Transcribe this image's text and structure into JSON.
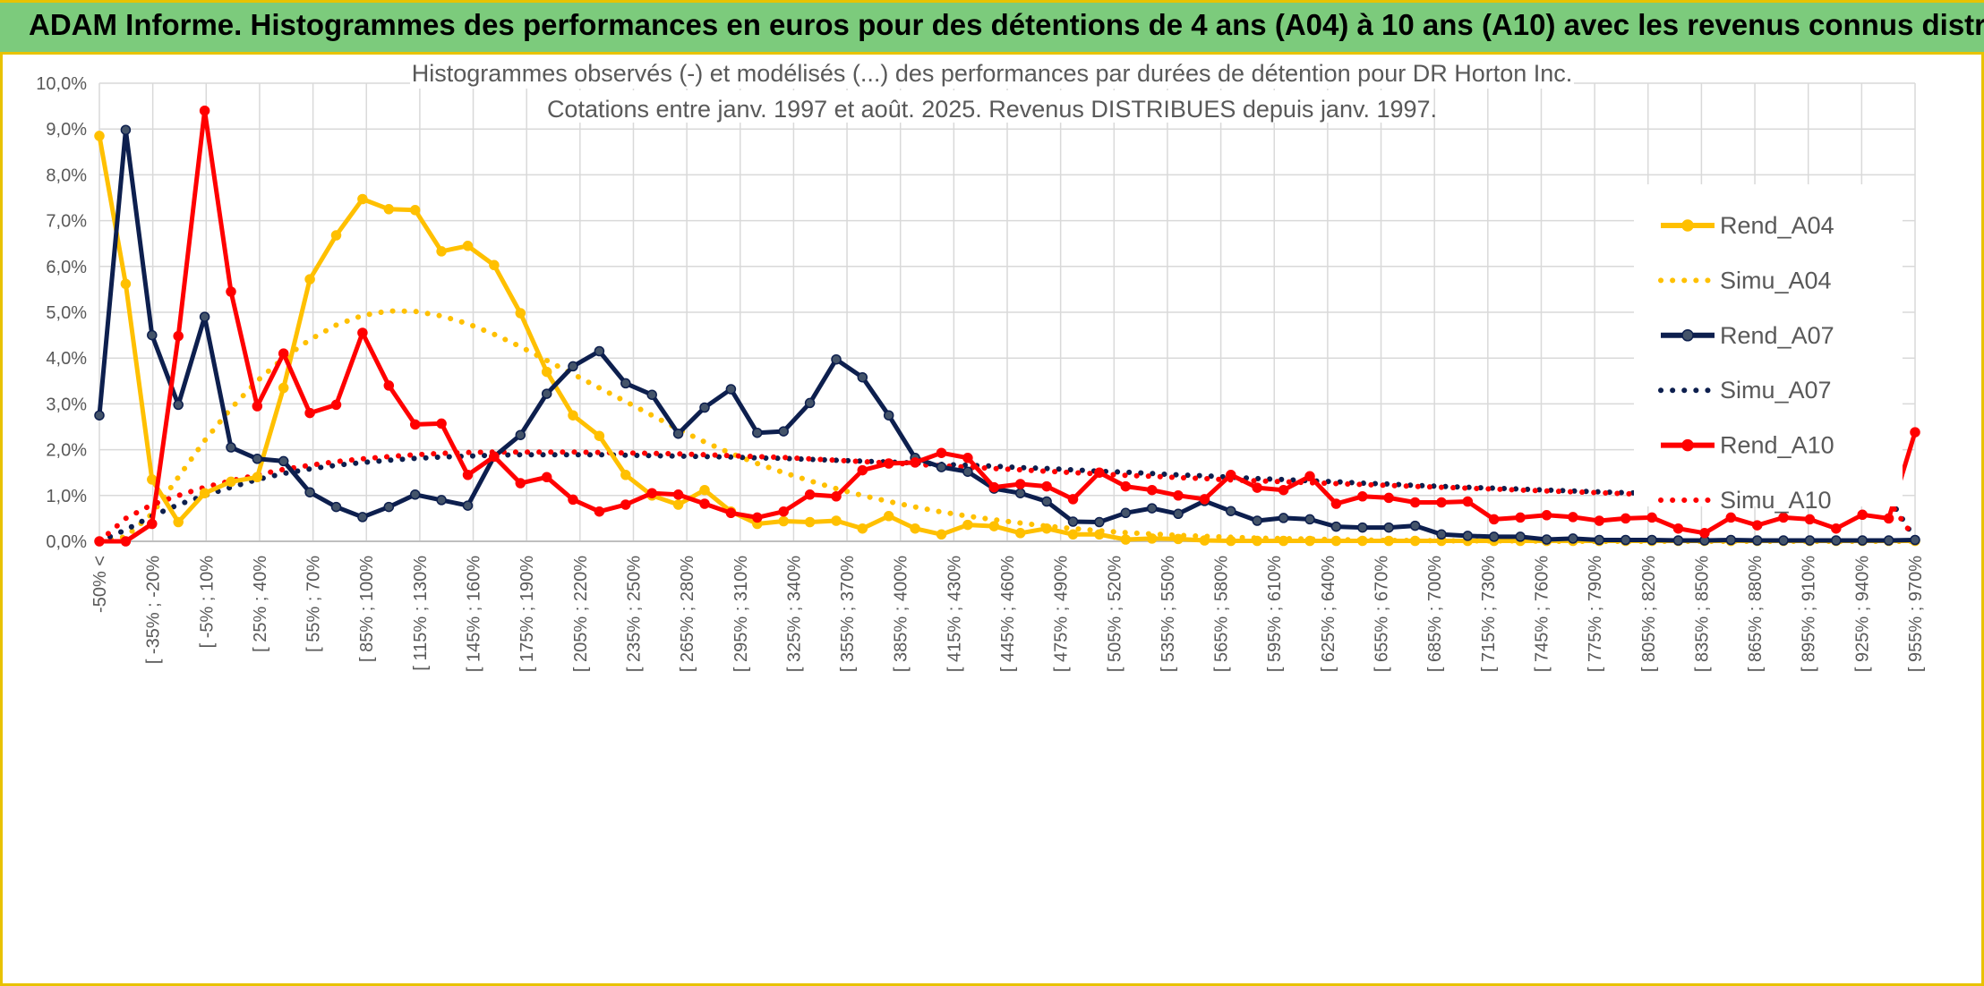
{
  "header": {
    "title": "ADAM Informe. Histogrammes des performances en euros pour des détentions de 4 ans (A04) à 10 ans (A10) avec les revenus connus distribués"
  },
  "chart_data": {
    "type": "line",
    "title": "Histogrammes observés (-) et modélisés (...) des performances par durées de détention pour DR Horton Inc.",
    "subtitle": "Cotations entre janv. 1997 et août. 2025. Revenus DISTRIBUES depuis janv. 1997.",
    "xlabel": "",
    "ylabel": "",
    "ylim": [
      0,
      10
    ],
    "y_ticks": [
      "0,0%",
      "1,0%",
      "2,0%",
      "3,0%",
      "4,0%",
      "5,0%",
      "6,0%",
      "7,0%",
      "8,0%",
      "9,0%",
      "10,0%"
    ],
    "grid": true,
    "legend_position": "right",
    "x_tick_labels": [
      "-50% <",
      "[ -35% ; -20%",
      "[ -5% ; 10%",
      "[ 25% ; 40%",
      "[ 55% ; 70%",
      "[ 85% ; 100%",
      "[ 115% ; 130%",
      "[ 145% ; 160%",
      "[ 175% ; 190%",
      "[ 205% ; 220%",
      "[ 235% ; 250%",
      "[ 265% ; 280%",
      "[ 295% ; 310%",
      "[ 325% ; 340%",
      "[ 355% ; 370%",
      "[ 385% ; 400%",
      "[ 415% ; 430%",
      "[ 445% ; 460%",
      "[ 475% ; 490%",
      "[ 505% ; 520%",
      "[ 535% ; 550%",
      "[ 565% ; 580%",
      "[ 595% ; 610%",
      "[ 625% ; 640%",
      "[ 655% ; 670%",
      "[ 685% ; 700%",
      "[ 715% ; 730%",
      "[ 745% ; 760%",
      "[ 775% ; 790%",
      "[ 805% ; 820%",
      "[ 835% ; 850%",
      "[ 865% ; 880%",
      "[ 895% ; 910%",
      "[ 925% ; 940%",
      "[ 955% ; 970%"
    ],
    "series": [
      {
        "name": "Rend_A04",
        "style": "solid",
        "color": "#FFC000",
        "values": [
          8.85,
          5.62,
          1.35,
          0.42,
          1.05,
          1.3,
          1.4,
          3.35,
          5.72,
          6.68,
          7.47,
          7.25,
          7.23,
          6.33,
          6.45,
          6.03,
          4.98,
          3.7,
          2.75,
          2.3,
          1.45,
          1.0,
          0.8,
          1.12,
          0.65,
          0.38,
          0.44,
          0.42,
          0.45,
          0.28,
          0.55,
          0.28,
          0.15,
          0.36,
          0.33,
          0.18,
          0.28,
          0.15,
          0.15,
          0.04,
          0.06,
          0.05,
          0.02,
          0.01,
          0.01,
          0.01,
          0.01,
          0.01,
          0.01,
          0.01,
          0.01,
          0.01,
          0.01,
          0.01,
          0.01,
          0.01,
          0.01,
          0.01,
          0.01,
          0.01,
          0.01,
          0.01,
          0.01,
          0.01,
          0.01,
          0.01,
          0.01,
          0.01,
          0.01,
          0.01
        ]
      },
      {
        "name": "Simu_A04",
        "style": "dotted",
        "color": "#FFC000",
        "values": [
          0.0,
          0.1,
          0.6,
          1.4,
          2.2,
          2.9,
          3.5,
          4.0,
          4.4,
          4.72,
          4.93,
          5.03,
          5.02,
          4.92,
          4.75,
          4.52,
          4.25,
          3.95,
          3.65,
          3.35,
          3.05,
          2.75,
          2.45,
          2.17,
          1.92,
          1.7,
          1.5,
          1.32,
          1.15,
          1.0,
          0.87,
          0.75,
          0.64,
          0.55,
          0.47,
          0.4,
          0.33,
          0.28,
          0.23,
          0.19,
          0.16,
          0.13,
          0.11,
          0.09,
          0.07,
          0.06,
          0.05,
          0.04,
          0.03,
          0.02,
          0.02,
          0.01,
          0.01,
          0.01,
          0.01,
          0.0,
          0.0,
          0.0,
          0.0,
          0.0,
          0.0,
          0.0,
          0.0,
          0.0,
          0.0,
          0.0,
          0.0,
          0.0,
          0.0,
          0.0
        ]
      },
      {
        "name": "Rend_A07",
        "style": "solid",
        "color": "#0D1F4E",
        "values": [
          2.75,
          8.98,
          4.5,
          2.98,
          4.9,
          2.05,
          1.8,
          1.75,
          1.07,
          0.75,
          0.53,
          0.75,
          1.02,
          0.9,
          0.78,
          1.85,
          2.32,
          3.22,
          3.82,
          4.15,
          3.45,
          3.2,
          2.35,
          2.92,
          3.32,
          2.37,
          2.4,
          3.02,
          3.97,
          3.58,
          2.75,
          1.82,
          1.62,
          1.52,
          1.15,
          1.05,
          0.87,
          0.43,
          0.42,
          0.62,
          0.72,
          0.6,
          0.88,
          0.66,
          0.45,
          0.51,
          0.48,
          0.32,
          0.3,
          0.3,
          0.34,
          0.15,
          0.12,
          0.1,
          0.1,
          0.04,
          0.06,
          0.03,
          0.03,
          0.03,
          0.02,
          0.02,
          0.03,
          0.02,
          0.02,
          0.02,
          0.02,
          0.02,
          0.02,
          0.03
        ]
      },
      {
        "name": "Simu_A07",
        "style": "dotted",
        "color": "#0D1F4E",
        "values": [
          0.0,
          0.25,
          0.55,
          0.8,
          1.0,
          1.18,
          1.35,
          1.48,
          1.58,
          1.66,
          1.72,
          1.77,
          1.81,
          1.84,
          1.86,
          1.88,
          1.89,
          1.89,
          1.89,
          1.89,
          1.88,
          1.87,
          1.86,
          1.85,
          1.84,
          1.82,
          1.81,
          1.79,
          1.77,
          1.75,
          1.73,
          1.71,
          1.68,
          1.66,
          1.64,
          1.61,
          1.59,
          1.56,
          1.53,
          1.51,
          1.48,
          1.45,
          1.43,
          1.4,
          1.37,
          1.35,
          1.32,
          1.3,
          1.27,
          1.25,
          1.22,
          1.2,
          1.18,
          1.16,
          1.14,
          1.12,
          1.1,
          1.08,
          1.06,
          1.05,
          1.04,
          1.03,
          1.02,
          1.01,
          1.0,
          0.99,
          0.98,
          0.97,
          0.96,
          0.05
        ]
      },
      {
        "name": "Rend_A10",
        "style": "solid",
        "color": "#FF0000",
        "values": [
          0.0,
          0.0,
          0.38,
          4.48,
          9.4,
          5.45,
          2.95,
          4.1,
          2.8,
          2.98,
          4.55,
          3.4,
          2.55,
          2.57,
          1.45,
          1.85,
          1.27,
          1.4,
          0.91,
          0.65,
          0.8,
          1.05,
          1.02,
          0.82,
          0.62,
          0.52,
          0.65,
          1.02,
          0.98,
          1.55,
          1.7,
          1.72,
          1.93,
          1.82,
          1.18,
          1.25,
          1.2,
          0.92,
          1.5,
          1.2,
          1.12,
          1.0,
          0.92,
          1.45,
          1.17,
          1.12,
          1.42,
          0.82,
          0.98,
          0.95,
          0.85,
          0.85,
          0.87,
          0.48,
          0.52,
          0.57,
          0.53,
          0.45,
          0.5,
          0.52,
          0.28,
          0.18,
          0.52,
          0.35,
          0.52,
          0.48,
          0.28,
          0.58,
          0.5,
          2.38
        ]
      },
      {
        "name": "Simu_A10",
        "style": "dotted",
        "color": "#FF0000",
        "values": [
          0.0,
          0.5,
          0.8,
          1.0,
          1.18,
          1.32,
          1.45,
          1.57,
          1.66,
          1.74,
          1.8,
          1.85,
          1.89,
          1.92,
          1.94,
          1.95,
          1.95,
          1.95,
          1.95,
          1.94,
          1.93,
          1.92,
          1.91,
          1.89,
          1.87,
          1.85,
          1.83,
          1.8,
          1.77,
          1.74,
          1.71,
          1.68,
          1.65,
          1.62,
          1.59,
          1.56,
          1.53,
          1.5,
          1.47,
          1.44,
          1.42,
          1.39,
          1.37,
          1.34,
          1.32,
          1.3,
          1.28,
          1.26,
          1.24,
          1.22,
          1.2,
          1.18,
          1.16,
          1.14,
          1.12,
          1.1,
          1.08,
          1.06,
          1.04,
          1.02,
          1.01,
          1.0,
          0.99,
          0.98,
          0.97,
          0.96,
          0.95,
          0.94,
          0.88,
          0.05
        ]
      }
    ]
  }
}
